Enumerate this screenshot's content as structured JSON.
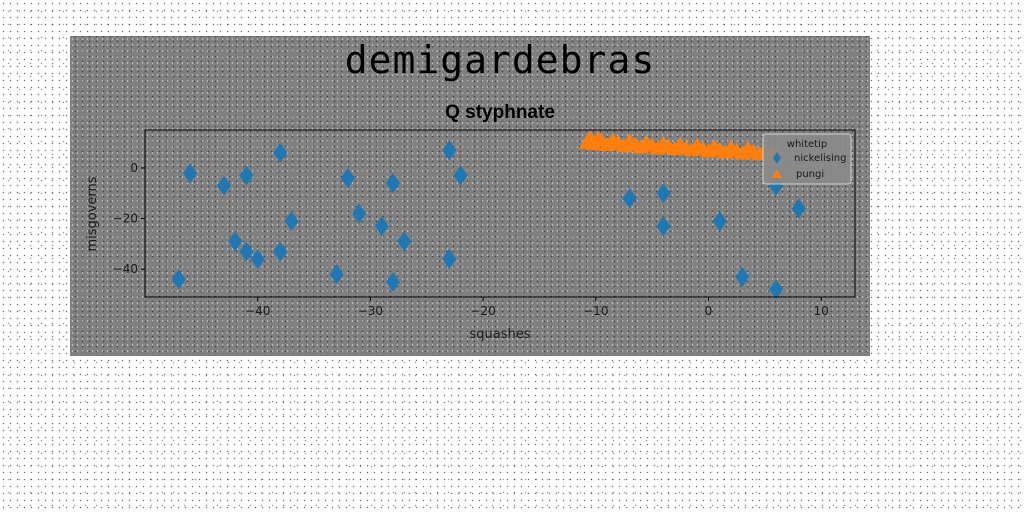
{
  "figure": {
    "suptitle": "demigardebras"
  },
  "chart_data": {
    "type": "scatter",
    "title": "Q styphnate",
    "xlabel": "squashes",
    "ylabel": "misgoverns",
    "xlim": [
      -50,
      13
    ],
    "ylim": [
      -51,
      15
    ],
    "xticks": [
      -40,
      -30,
      -20,
      -10,
      0,
      10
    ],
    "yticks": [
      -40,
      -20,
      0
    ],
    "grid": false,
    "legend": {
      "title": "whitetip",
      "placement": "top-right",
      "entries": [
        "nickelising",
        "pungi"
      ]
    },
    "series": [
      {
        "name": "nickelising",
        "marker": "diamond",
        "color": "#1f77b4",
        "x": [
          -47,
          -46,
          -43,
          -42,
          -41,
          -41,
          -40,
          -38,
          -38,
          -37,
          -33,
          -32,
          -31,
          -29,
          -28,
          -28,
          -27,
          -23,
          -23,
          -22,
          -7,
          -4,
          -4,
          1,
          3,
          6,
          6,
          8
        ],
        "y": [
          -44,
          -2,
          -7,
          -29,
          -33,
          -3,
          -36,
          -33,
          6,
          -21,
          -42,
          -4,
          -18,
          -23,
          -45,
          -6,
          -29,
          -36,
          7,
          -3,
          -12,
          -10,
          -23,
          -21,
          -43,
          -7,
          -48,
          -16
        ]
      },
      {
        "name": "pungi",
        "marker": "triangle",
        "color": "#ff7f0e",
        "x": [
          -10.8,
          -10.5,
          -10.2,
          -9.8,
          -9.5,
          -9.0,
          -8.5,
          -8.0,
          -7.5,
          -7.0,
          -6.5,
          -6.0,
          -5.5,
          -5.0,
          -4.5,
          -4.0,
          -3.5,
          -3.0,
          -2.5,
          -2.0,
          -1.5,
          -1.0,
          -0.5,
          0.0,
          0.5,
          1.0,
          1.5,
          2.0,
          2.5,
          3.0,
          3.5,
          4.0,
          4.5,
          5.0,
          5.5,
          6.0
        ],
        "y": [
          10.0,
          12.0,
          9.5,
          11.5,
          10.8,
          9.0,
          11.0,
          9.8,
          8.6,
          10.6,
          9.2,
          8.2,
          10.0,
          8.8,
          7.8,
          9.6,
          8.4,
          7.4,
          9.2,
          8.0,
          7.0,
          8.8,
          7.6,
          6.6,
          8.4,
          7.2,
          6.2,
          8.0,
          6.8,
          5.8,
          7.6,
          6.4,
          5.4,
          7.2,
          6.0,
          5.0
        ]
      }
    ]
  }
}
